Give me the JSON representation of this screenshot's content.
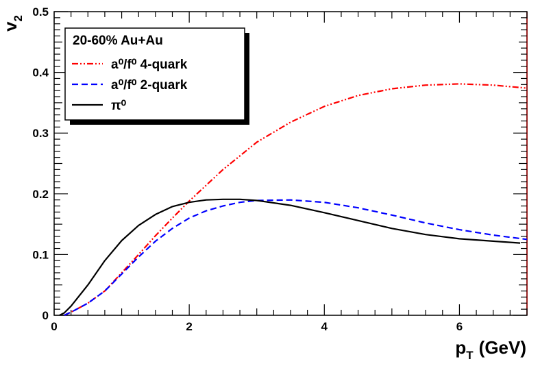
{
  "chart_data": {
    "type": "line",
    "title": "",
    "xlabel": "p",
    "xlabel_sub": "T",
    "xlabel_unit": "(GeV)",
    "ylabel": "v",
    "ylabel_sub": "2",
    "xlim": [
      0,
      7
    ],
    "ylim": [
      0,
      0.5
    ],
    "x_ticks": [
      0,
      2,
      4,
      6
    ],
    "x_tick_labels": [
      "0",
      "2",
      "4",
      "6"
    ],
    "y_ticks": [
      0,
      0.1,
      0.2,
      0.3,
      0.4,
      0.5
    ],
    "y_tick_labels": [
      "0",
      "0.1",
      "0.2",
      "0.3",
      "0.4",
      "0.5"
    ],
    "grid": false,
    "legend_position": "top-left",
    "legend_header": "20-60% Au+Au",
    "series": [
      {
        "name": "a⁰/f⁰ 4-quark",
        "color": "#ff0000",
        "style": "dash-dot-dot",
        "x": [
          0.15,
          0.3,
          0.5,
          0.75,
          1.0,
          1.25,
          1.5,
          1.75,
          2.0,
          2.5,
          3.0,
          3.5,
          4.0,
          4.5,
          5.0,
          5.5,
          6.0,
          6.5,
          7.0
        ],
        "y": [
          0.0,
          0.008,
          0.02,
          0.04,
          0.07,
          0.1,
          0.131,
          0.16,
          0.188,
          0.24,
          0.285,
          0.318,
          0.344,
          0.362,
          0.373,
          0.379,
          0.381,
          0.379,
          0.374
        ]
      },
      {
        "name": "a⁰/f⁰ 2-quark",
        "color": "#0000ff",
        "style": "dashed",
        "x": [
          0.15,
          0.3,
          0.5,
          0.75,
          1.0,
          1.25,
          1.5,
          1.75,
          2.0,
          2.25,
          2.5,
          2.75,
          3.0,
          3.5,
          4.0,
          4.5,
          5.0,
          5.5,
          6.0,
          6.5,
          7.0
        ],
        "y": [
          0.0,
          0.008,
          0.02,
          0.04,
          0.068,
          0.096,
          0.122,
          0.143,
          0.16,
          0.172,
          0.18,
          0.186,
          0.189,
          0.19,
          0.186,
          0.177,
          0.165,
          0.152,
          0.141,
          0.132,
          0.125
        ]
      },
      {
        "name": "π⁰",
        "color": "#000000",
        "style": "solid",
        "x": [
          0.08,
          0.15,
          0.25,
          0.5,
          0.75,
          1.0,
          1.25,
          1.5,
          1.75,
          2.0,
          2.25,
          2.5,
          2.75,
          3.0,
          3.5,
          4.0,
          4.5,
          5.0,
          5.5,
          6.0,
          6.5,
          6.9
        ],
        "y": [
          0.0,
          0.004,
          0.015,
          0.05,
          0.09,
          0.123,
          0.148,
          0.166,
          0.179,
          0.186,
          0.19,
          0.191,
          0.191,
          0.189,
          0.181,
          0.169,
          0.156,
          0.143,
          0.133,
          0.126,
          0.122,
          0.119
        ]
      }
    ]
  }
}
